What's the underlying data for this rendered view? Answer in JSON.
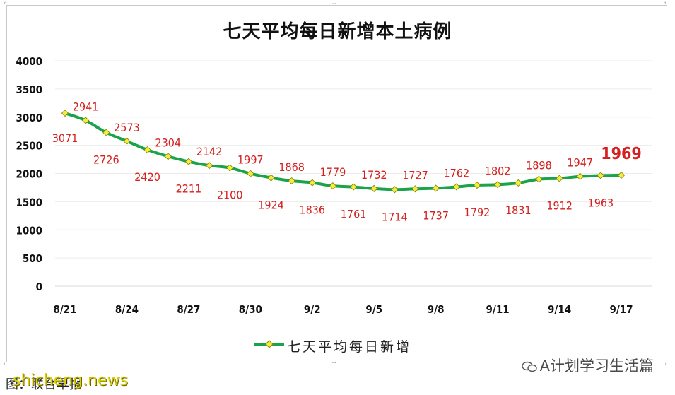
{
  "chart_data": {
    "type": "line",
    "title": "七天平均每日新增本土病例",
    "x": [
      "8/21",
      "8/22",
      "8/23",
      "8/24",
      "8/25",
      "8/26",
      "8/27",
      "8/28",
      "8/29",
      "8/30",
      "8/31",
      "9/1",
      "9/2",
      "9/3",
      "9/4",
      "9/5",
      "9/6",
      "9/7",
      "9/8",
      "9/9",
      "9/10",
      "9/11",
      "9/12",
      "9/13",
      "9/14",
      "9/15",
      "9/16",
      "9/17"
    ],
    "x_tick_labels": [
      "8/21",
      "8/24",
      "8/27",
      "8/30",
      "9/2",
      "9/5",
      "9/8",
      "9/11",
      "9/14",
      "9/17"
    ],
    "series": [
      {
        "name": "七天平均每日新增",
        "color": "#1aa34a",
        "marker_color": "#f2ee3a",
        "values": [
          3071,
          2941,
          2726,
          2573,
          2420,
          2304,
          2211,
          2142,
          2100,
          1997,
          1924,
          1868,
          1836,
          1779,
          1761,
          1732,
          1714,
          1727,
          1737,
          1762,
          1792,
          1802,
          1831,
          1898,
          1912,
          1947,
          1963,
          1969
        ]
      }
    ],
    "data_labels": [
      "3071",
      "2941",
      "2726",
      "2573",
      "2420",
      "2304",
      "2211",
      "2142",
      "2100",
      "1997",
      "1924",
      "1868",
      "1836",
      "1779",
      "1761",
      "1732",
      "1714",
      "1727",
      "1737",
      "1762",
      "1792",
      "1802",
      "1831",
      "1898",
      "1912",
      "1947",
      "1963",
      "1969"
    ],
    "y_tick_labels": [
      "0",
      "500",
      "1000",
      "1500",
      "2000",
      "2500",
      "3000",
      "3500",
      "4000"
    ],
    "ylim": [
      0,
      4000
    ],
    "grid": true,
    "legend": "bottom",
    "label_color": "#d42020"
  },
  "watermark": "A计划学习生活篇",
  "source": "图：联合早报",
  "site": "shicheng.news"
}
